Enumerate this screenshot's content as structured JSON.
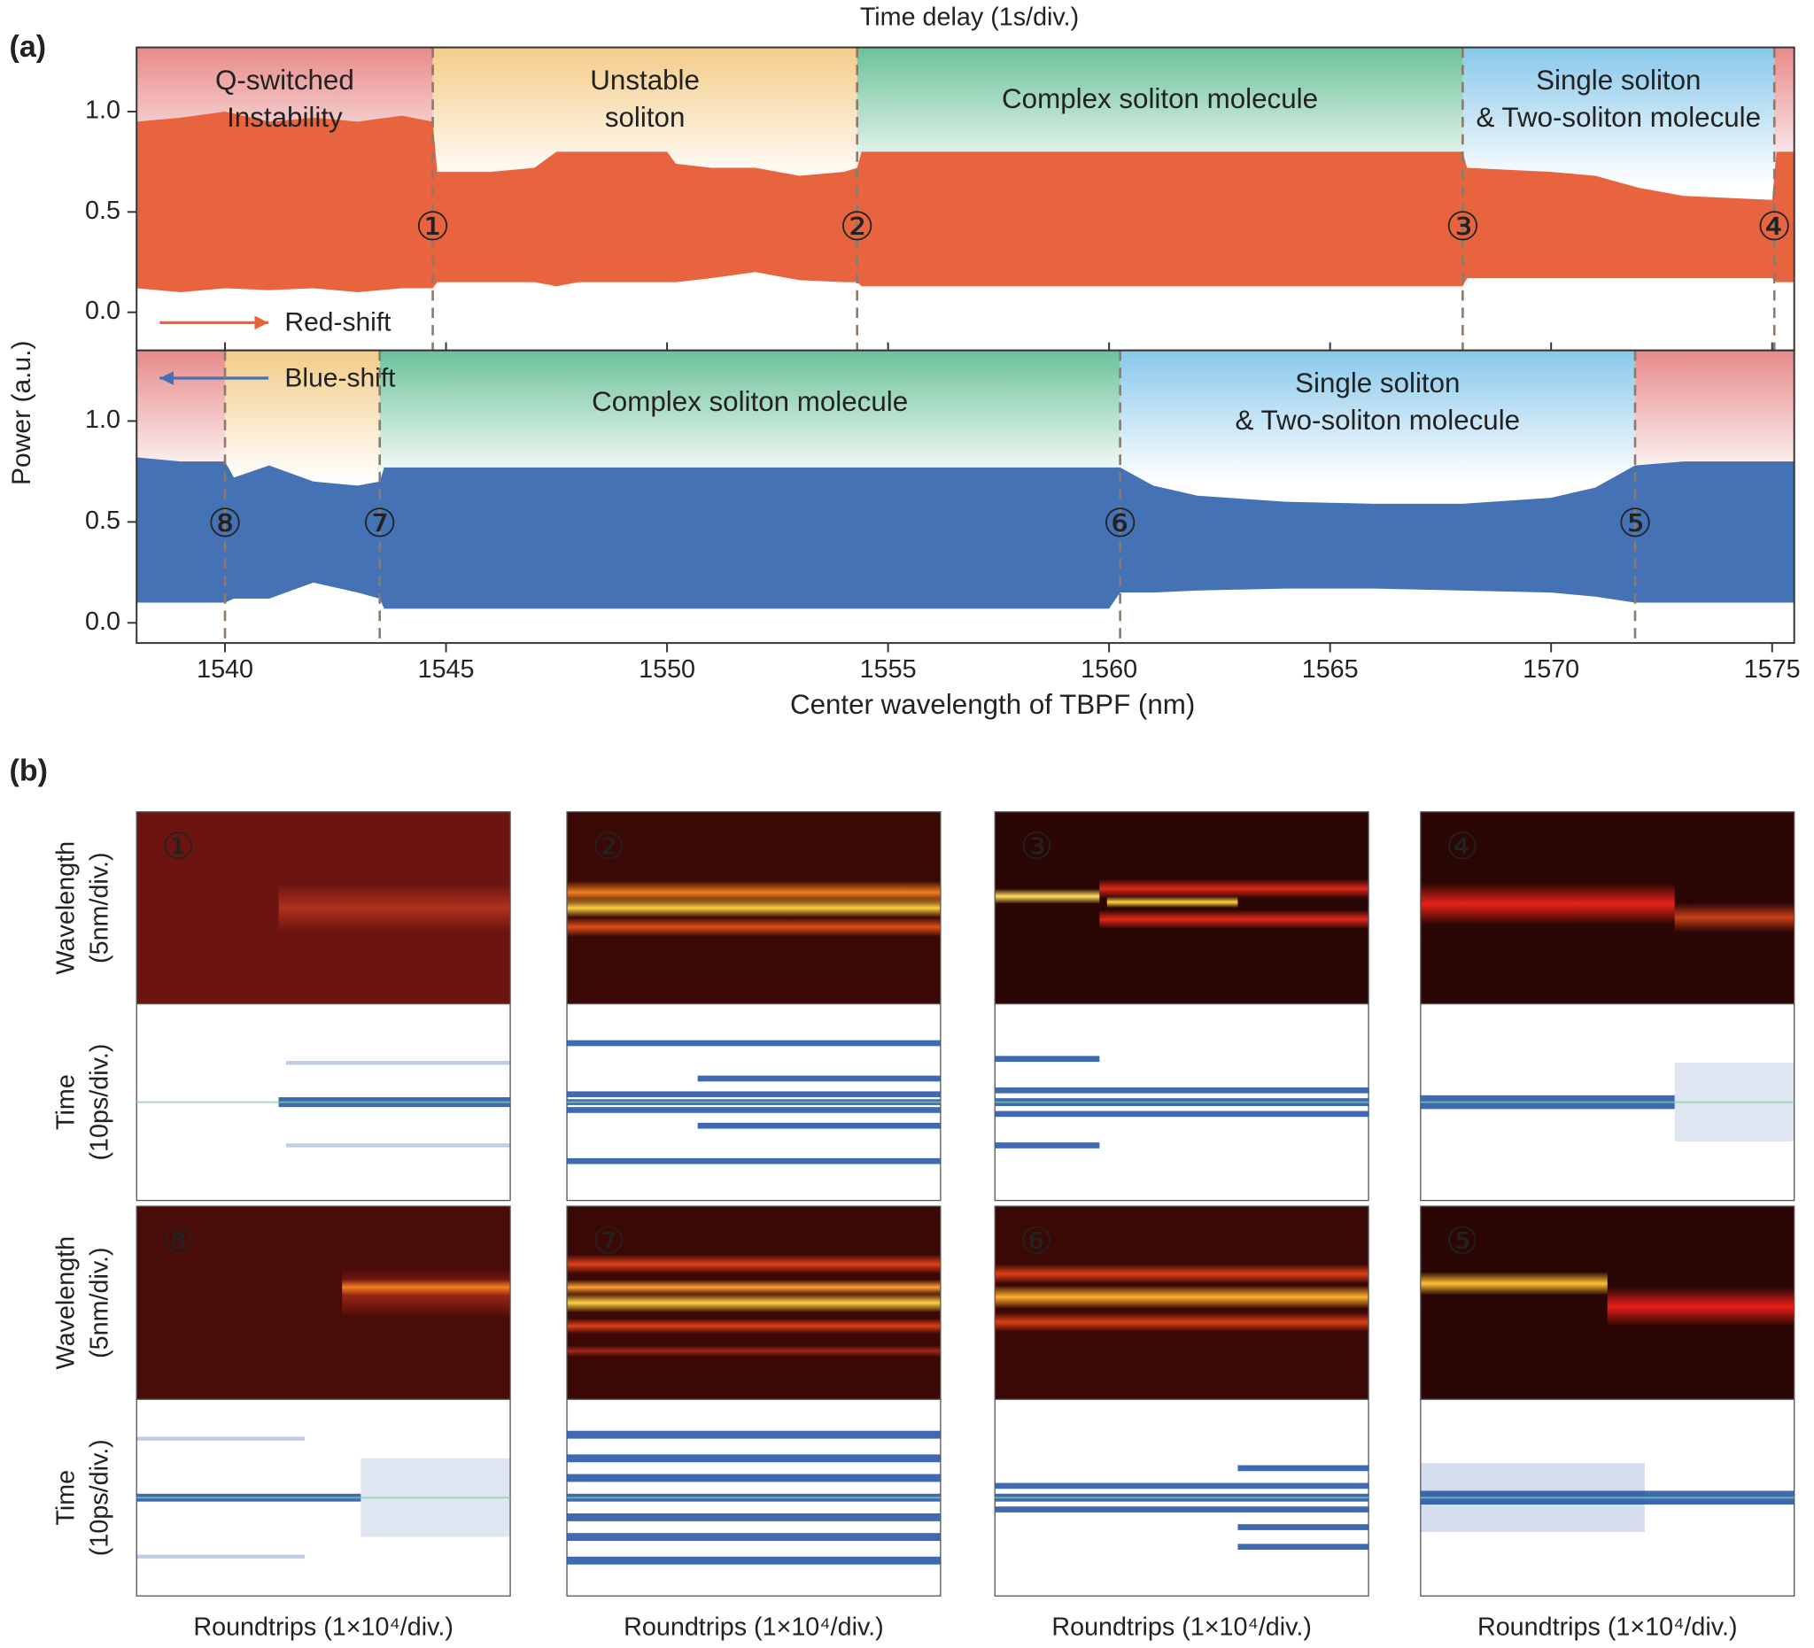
{
  "panel_labels": [
    "(a)",
    "(b)"
  ],
  "chart_data": [
    {
      "type": "band",
      "title": "Time delay (1s/div.)",
      "ylabel": "Power (a.u.)",
      "xlim": [
        1538,
        1575.5
      ],
      "ylim": [
        -0.19,
        1.32
      ],
      "yticks": [
        {
          "value": 0,
          "label": "0.0"
        },
        {
          "value": 0.5,
          "label": "0.5"
        },
        {
          "value": 1,
          "label": "1.0"
        }
      ],
      "series": [
        {
          "name": "Red-shift",
          "color": "#e8643f",
          "arrow": "right",
          "x": [
            1538,
            1539,
            1540,
            1541,
            1542,
            1543,
            1544,
            1544.7,
            1544.8,
            1546,
            1547,
            1547.5,
            1548,
            1549,
            1550,
            1550.2,
            1551,
            1552,
            1553,
            1554,
            1554.3,
            1554.4,
            1556,
            1558,
            1560,
            1562,
            1564,
            1566,
            1568,
            1568.1,
            1570,
            1571,
            1572,
            1573,
            1574,
            1575,
            1575.1,
            1575.5
          ],
          "upper": [
            0.95,
            0.97,
            1.0,
            0.95,
            0.97,
            0.95,
            0.98,
            0.95,
            0.7,
            0.7,
            0.72,
            0.8,
            0.8,
            0.8,
            0.8,
            0.74,
            0.72,
            0.72,
            0.68,
            0.7,
            0.72,
            0.8,
            0.8,
            0.8,
            0.8,
            0.8,
            0.8,
            0.8,
            0.8,
            0.72,
            0.7,
            0.68,
            0.62,
            0.58,
            0.57,
            0.56,
            0.8,
            0.8
          ],
          "lower": [
            0.12,
            0.1,
            0.12,
            0.11,
            0.12,
            0.1,
            0.12,
            0.12,
            0.15,
            0.15,
            0.15,
            0.13,
            0.15,
            0.15,
            0.15,
            0.15,
            0.17,
            0.2,
            0.16,
            0.15,
            0.15,
            0.13,
            0.13,
            0.13,
            0.13,
            0.13,
            0.13,
            0.13,
            0.13,
            0.17,
            0.17,
            0.17,
            0.17,
            0.17,
            0.17,
            0.17,
            0.15,
            0.15
          ]
        }
      ],
      "regions": [
        {
          "start": 1538,
          "end": 1544.7,
          "color": "#e88a8a",
          "label": [
            "Q-switched",
            "Instability"
          ]
        },
        {
          "start": 1544.7,
          "end": 1554.3,
          "color": "#f3cc88",
          "label": [
            "Unstable",
            "soliton"
          ]
        },
        {
          "start": 1554.3,
          "end": 1568.0,
          "color": "#6cc29a",
          "label": [
            "Complex soliton molecule"
          ]
        },
        {
          "start": 1568.0,
          "end": 1575.05,
          "color": "#88c8ea",
          "label": [
            "Single soliton",
            "& Two-soliton molecule"
          ]
        },
        {
          "start": 1575.05,
          "end": 1575.5,
          "color": "#e88a8a"
        }
      ],
      "markers": [
        {
          "x": 1544.7,
          "label": "①"
        },
        {
          "x": 1554.3,
          "label": "②"
        },
        {
          "x": 1568.0,
          "label": "③"
        },
        {
          "x": 1575.05,
          "label": "④"
        }
      ]
    },
    {
      "type": "band",
      "xlabel": "Center wavelength of TBPF (nm)",
      "xlim": [
        1538,
        1575.5
      ],
      "ylim": [
        -0.1,
        1.35
      ],
      "xticks": [
        1540,
        1545,
        1550,
        1555,
        1560,
        1565,
        1570,
        1575
      ],
      "yticks": [
        {
          "value": 0,
          "label": "0.0"
        },
        {
          "value": 0.5,
          "label": "0.5"
        },
        {
          "value": 1,
          "label": "1.0"
        }
      ],
      "series": [
        {
          "name": "Blue-shift",
          "color": "#4472b4",
          "arrow": "left",
          "x": [
            1538,
            1539,
            1540,
            1540.2,
            1541,
            1542,
            1543,
            1543.5,
            1543.6,
            1546,
            1550,
            1555,
            1560,
            1560.25,
            1561,
            1562,
            1564,
            1566,
            1568,
            1570,
            1571,
            1571.9,
            1573,
            1574,
            1575.5
          ],
          "upper": [
            0.82,
            0.8,
            0.8,
            0.72,
            0.78,
            0.7,
            0.68,
            0.7,
            0.77,
            0.77,
            0.77,
            0.77,
            0.77,
            0.77,
            0.68,
            0.63,
            0.6,
            0.59,
            0.59,
            0.62,
            0.67,
            0.78,
            0.8,
            0.8,
            0.8
          ],
          "lower": [
            0.1,
            0.1,
            0.1,
            0.12,
            0.12,
            0.2,
            0.15,
            0.12,
            0.07,
            0.07,
            0.07,
            0.07,
            0.07,
            0.15,
            0.15,
            0.16,
            0.17,
            0.17,
            0.16,
            0.15,
            0.13,
            0.1,
            0.1,
            0.1,
            0.1
          ]
        }
      ],
      "regions": [
        {
          "start": 1538,
          "end": 1540.0,
          "color": "#e88a8a"
        },
        {
          "start": 1540.0,
          "end": 1543.5,
          "color": "#f3cc88"
        },
        {
          "start": 1543.5,
          "end": 1560.25,
          "color": "#6cc29a",
          "label": [
            "Complex soliton molecule"
          ]
        },
        {
          "start": 1560.25,
          "end": 1571.9,
          "color": "#88c8ea",
          "label": [
            "Single soliton",
            "& Two-soliton molecule"
          ]
        },
        {
          "start": 1571.9,
          "end": 1575.5,
          "color": "#e88a8a"
        }
      ],
      "markers": [
        {
          "x": 1540.0,
          "label": "⑧"
        },
        {
          "x": 1543.5,
          "label": "⑦"
        },
        {
          "x": 1560.25,
          "label": "⑥"
        },
        {
          "x": 1571.9,
          "label": "⑤"
        }
      ]
    }
  ],
  "panel_b": {
    "row_labels": [
      [
        "Wavelength",
        "(5nm/div.)"
      ],
      [
        "Time",
        "(10ps/div.)"
      ],
      [
        "Wavelength",
        "(5nm/div.)"
      ],
      [
        "Time",
        "(10ps/div.)"
      ]
    ],
    "xlabels": [
      "Roundtrips (1×10⁴/div.)",
      "Roundtrips (1×10⁴/div.)",
      "Roundtrips (1×10⁴/div.)",
      "Roundtrips (1×10⁴/div.)"
    ],
    "panels": [
      {
        "label": "①"
      },
      {
        "label": "②"
      },
      {
        "label": "③"
      },
      {
        "label": "④"
      },
      {
        "label": "⑧"
      },
      {
        "label": "⑦"
      },
      {
        "label": "⑥"
      },
      {
        "label": "⑤"
      }
    ]
  }
}
